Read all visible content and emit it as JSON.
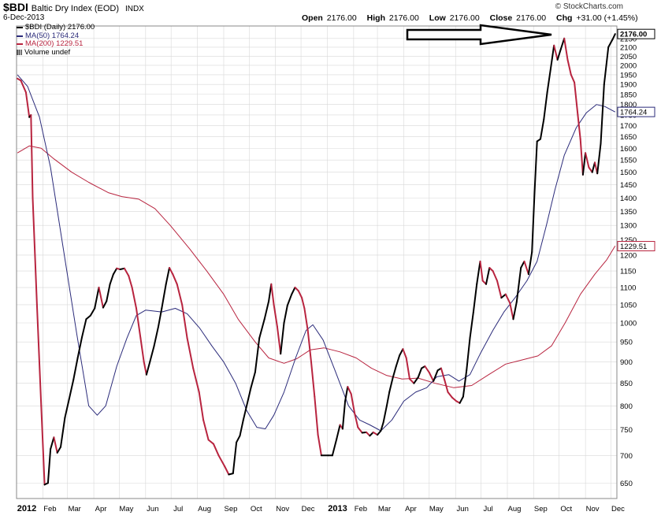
{
  "header": {
    "symbol": "$BDI",
    "name": "Baltic Dry Index (EOD)",
    "exchange": "INDX",
    "date": "6-Dec-2013",
    "brand": "© StockCharts.com",
    "open_label": "Open",
    "open": "2176.00",
    "high_label": "High",
    "high": "2176.00",
    "low_label": "Low",
    "low": "2176.00",
    "close_label": "Close",
    "close": "2176.00",
    "chg_label": "Chg",
    "chg": "+31.00 (+1.45%)"
  },
  "legend": [
    {
      "text": "$BDI (Daily) 2176.00",
      "color": "#000000"
    },
    {
      "text": "MA(50) 1764.24",
      "color": "#2b2b7a"
    },
    {
      "text": "MA(200) 1229.51",
      "color": "#b8243f"
    },
    {
      "text": "Volume undef",
      "color": "#555555"
    }
  ],
  "chart_data": {
    "type": "line",
    "y_scale": "log",
    "ylim": [
      630,
      2200
    ],
    "x_range": [
      "2012-01-01",
      "2013-12-08"
    ],
    "y_ticks": [
      650,
      700,
      750,
      800,
      850,
      900,
      950,
      1000,
      1050,
      1100,
      1150,
      1200,
      1250,
      1300,
      1350,
      1400,
      1450,
      1500,
      1550,
      1600,
      1650,
      1700,
      1750,
      1800,
      1850,
      1900,
      1950,
      2000,
      2050,
      2100,
      2150
    ],
    "x_ticks": [
      {
        "label": "2012",
        "date": "2012-01-01",
        "bold": true
      },
      {
        "label": "Feb",
        "date": "2012-02-01"
      },
      {
        "label": "Mar",
        "date": "2012-03-01"
      },
      {
        "label": "Apr",
        "date": "2012-04-01"
      },
      {
        "label": "May",
        "date": "2012-05-01"
      },
      {
        "label": "Jun",
        "date": "2012-06-01"
      },
      {
        "label": "Jul",
        "date": "2012-07-01"
      },
      {
        "label": "Aug",
        "date": "2012-08-01"
      },
      {
        "label": "Sep",
        "date": "2012-09-01"
      },
      {
        "label": "Oct",
        "date": "2012-10-01"
      },
      {
        "label": "Nov",
        "date": "2012-11-01"
      },
      {
        "label": "Dec",
        "date": "2012-12-01"
      },
      {
        "label": "2013",
        "date": "2013-01-01",
        "bold": true
      },
      {
        "label": "Feb",
        "date": "2013-02-01"
      },
      {
        "label": "Mar",
        "date": "2013-03-01"
      },
      {
        "label": "Apr",
        "date": "2013-04-01"
      },
      {
        "label": "May",
        "date": "2013-05-01"
      },
      {
        "label": "Jun",
        "date": "2013-06-01"
      },
      {
        "label": "Jul",
        "date": "2013-07-01"
      },
      {
        "label": "Aug",
        "date": "2013-08-01"
      },
      {
        "label": "Sep",
        "date": "2013-09-01"
      },
      {
        "label": "Oct",
        "date": "2013-10-01"
      },
      {
        "label": "Nov",
        "date": "2013-11-01"
      },
      {
        "label": "Dec",
        "date": "2013-12-01"
      }
    ],
    "grid": true,
    "legend_position": "top-left",
    "colors": {
      "up": "#000000",
      "down": "#b8243f",
      "ma50": "#2b2b7a",
      "ma200": "#b8243f",
      "grid": "#d8d8d8"
    },
    "price": {
      "name": "$BDI",
      "points": [
        [
          "2012-01-02",
          1930
        ],
        [
          "2012-01-06",
          1920
        ],
        [
          "2012-01-12",
          1860
        ],
        [
          "2012-01-16",
          1740
        ],
        [
          "2012-01-18",
          1750
        ],
        [
          "2012-01-20",
          1400
        ],
        [
          "2012-01-25",
          1050
        ],
        [
          "2012-01-30",
          800
        ],
        [
          "2012-02-03",
          647
        ],
        [
          "2012-02-07",
          650
        ],
        [
          "2012-02-10",
          712
        ],
        [
          "2012-02-14",
          735
        ],
        [
          "2012-02-18",
          705
        ],
        [
          "2012-02-22",
          716
        ],
        [
          "2012-02-27",
          775
        ],
        [
          "2012-03-03",
          815
        ],
        [
          "2012-03-08",
          858
        ],
        [
          "2012-03-13",
          910
        ],
        [
          "2012-03-18",
          962
        ],
        [
          "2012-03-23",
          1010
        ],
        [
          "2012-03-28",
          1020
        ],
        [
          "2012-04-02",
          1040
        ],
        [
          "2012-04-07",
          1100
        ],
        [
          "2012-04-12",
          1042
        ],
        [
          "2012-04-16",
          1060
        ],
        [
          "2012-04-20",
          1110
        ],
        [
          "2012-04-24",
          1140
        ],
        [
          "2012-04-28",
          1158
        ],
        [
          "2012-05-02",
          1155
        ],
        [
          "2012-05-07",
          1158
        ],
        [
          "2012-05-12",
          1135
        ],
        [
          "2012-05-16",
          1100
        ],
        [
          "2012-05-21",
          1040
        ],
        [
          "2012-05-26",
          960
        ],
        [
          "2012-05-30",
          900
        ],
        [
          "2012-06-02",
          870
        ],
        [
          "2012-06-06",
          900
        ],
        [
          "2012-06-11",
          940
        ],
        [
          "2012-06-16",
          990
        ],
        [
          "2012-06-20",
          1040
        ],
        [
          "2012-06-25",
          1110
        ],
        [
          "2012-06-29",
          1160
        ],
        [
          "2012-07-03",
          1140
        ],
        [
          "2012-07-08",
          1110
        ],
        [
          "2012-07-14",
          1050
        ],
        [
          "2012-07-20",
          960
        ],
        [
          "2012-07-27",
          885
        ],
        [
          "2012-08-03",
          830
        ],
        [
          "2012-08-08",
          770
        ],
        [
          "2012-08-14",
          730
        ],
        [
          "2012-08-20",
          722
        ],
        [
          "2012-08-26",
          700
        ],
        [
          "2012-09-02",
          680
        ],
        [
          "2012-09-07",
          665
        ],
        [
          "2012-09-12",
          667
        ],
        [
          "2012-09-16",
          725
        ],
        [
          "2012-09-20",
          738
        ],
        [
          "2012-09-24",
          770
        ],
        [
          "2012-09-28",
          800
        ],
        [
          "2012-10-03",
          840
        ],
        [
          "2012-10-08",
          876
        ],
        [
          "2012-10-13",
          960
        ],
        [
          "2012-10-19",
          1010
        ],
        [
          "2012-10-24",
          1060
        ],
        [
          "2012-10-27",
          1110
        ],
        [
          "2012-10-30",
          1050
        ],
        [
          "2012-11-03",
          990
        ],
        [
          "2012-11-07",
          920
        ],
        [
          "2012-11-11",
          1000
        ],
        [
          "2012-11-15",
          1048
        ],
        [
          "2012-11-20",
          1080
        ],
        [
          "2012-11-24",
          1100
        ],
        [
          "2012-11-28",
          1090
        ],
        [
          "2012-12-02",
          1070
        ],
        [
          "2012-12-05",
          1040
        ],
        [
          "2012-12-09",
          980
        ],
        [
          "2012-12-13",
          900
        ],
        [
          "2012-12-17",
          820
        ],
        [
          "2012-12-21",
          740
        ],
        [
          "2012-12-25",
          700
        ],
        [
          "2013-01-02",
          700
        ],
        [
          "2013-01-07",
          700
        ],
        [
          "2013-01-12",
          732
        ],
        [
          "2013-01-16",
          760
        ],
        [
          "2013-01-19",
          752
        ],
        [
          "2013-01-22",
          810
        ],
        [
          "2013-01-25",
          842
        ],
        [
          "2013-01-29",
          826
        ],
        [
          "2013-02-02",
          785
        ],
        [
          "2013-02-06",
          755
        ],
        [
          "2013-02-11",
          744
        ],
        [
          "2013-02-16",
          745
        ],
        [
          "2013-02-20",
          738
        ],
        [
          "2013-02-24",
          745
        ],
        [
          "2013-03-01",
          740
        ],
        [
          "2013-03-05",
          748
        ],
        [
          "2013-03-08",
          765
        ],
        [
          "2013-03-12",
          800
        ],
        [
          "2013-03-15",
          830
        ],
        [
          "2013-03-19",
          862
        ],
        [
          "2013-03-23",
          890
        ],
        [
          "2013-03-27",
          916
        ],
        [
          "2013-03-31",
          932
        ],
        [
          "2013-04-04",
          910
        ],
        [
          "2013-04-08",
          860
        ],
        [
          "2013-04-13",
          850
        ],
        [
          "2013-04-18",
          864
        ],
        [
          "2013-04-22",
          885
        ],
        [
          "2013-04-26",
          890
        ],
        [
          "2013-05-01",
          875
        ],
        [
          "2013-05-06",
          855
        ],
        [
          "2013-05-11",
          880
        ],
        [
          "2013-05-15",
          885
        ],
        [
          "2013-05-19",
          858
        ],
        [
          "2013-05-23",
          830
        ],
        [
          "2013-05-28",
          818
        ],
        [
          "2013-06-02",
          810
        ],
        [
          "2013-06-06",
          806
        ],
        [
          "2013-06-10",
          820
        ],
        [
          "2013-06-14",
          880
        ],
        [
          "2013-06-18",
          960
        ],
        [
          "2013-06-22",
          1030
        ],
        [
          "2013-06-26",
          1110
        ],
        [
          "2013-06-30",
          1180
        ],
        [
          "2013-07-03",
          1120
        ],
        [
          "2013-07-07",
          1110
        ],
        [
          "2013-07-11",
          1160
        ],
        [
          "2013-07-15",
          1150
        ],
        [
          "2013-07-20",
          1120
        ],
        [
          "2013-07-25",
          1070
        ],
        [
          "2013-07-30",
          1080
        ],
        [
          "2013-08-04",
          1055
        ],
        [
          "2013-08-08",
          1010
        ],
        [
          "2013-08-12",
          1058
        ],
        [
          "2013-08-17",
          1160
        ],
        [
          "2013-08-21",
          1180
        ],
        [
          "2013-08-26",
          1140
        ],
        [
          "2013-08-30",
          1210
        ],
        [
          "2013-09-02",
          1420
        ],
        [
          "2013-09-05",
          1630
        ],
        [
          "2013-09-09",
          1640
        ],
        [
          "2013-09-13",
          1730
        ],
        [
          "2013-09-17",
          1860
        ],
        [
          "2013-09-21",
          1980
        ],
        [
          "2013-09-25",
          2110
        ],
        [
          "2013-09-29",
          2030
        ],
        [
          "2013-10-03",
          2090
        ],
        [
          "2013-10-07",
          2150
        ],
        [
          "2013-10-11",
          2030
        ],
        [
          "2013-10-15",
          1950
        ],
        [
          "2013-10-19",
          1910
        ],
        [
          "2013-10-23",
          1750
        ],
        [
          "2013-10-26",
          1640
        ],
        [
          "2013-10-29",
          1490
        ],
        [
          "2013-11-01",
          1580
        ],
        [
          "2013-11-05",
          1520
        ],
        [
          "2013-11-09",
          1500
        ],
        [
          "2013-11-12",
          1540
        ],
        [
          "2013-11-15",
          1495
        ],
        [
          "2013-11-19",
          1620
        ],
        [
          "2013-11-23",
          1900
        ],
        [
          "2013-11-28",
          2100
        ],
        [
          "2013-12-03",
          2145
        ],
        [
          "2013-12-06",
          2176
        ]
      ]
    },
    "ma50": {
      "name": "MA(50)",
      "points": [
        [
          "2012-01-02",
          1950
        ],
        [
          "2012-01-14",
          1890
        ],
        [
          "2012-01-28",
          1740
        ],
        [
          "2012-02-10",
          1520
        ],
        [
          "2012-02-24",
          1240
        ],
        [
          "2012-03-12",
          970
        ],
        [
          "2012-03-26",
          800
        ],
        [
          "2012-04-05",
          780
        ],
        [
          "2012-04-15",
          800
        ],
        [
          "2012-04-28",
          890
        ],
        [
          "2012-05-10",
          960
        ],
        [
          "2012-05-21",
          1020
        ],
        [
          "2012-06-01",
          1035
        ],
        [
          "2012-06-20",
          1030
        ],
        [
          "2012-07-06",
          1040
        ],
        [
          "2012-07-20",
          1025
        ],
        [
          "2012-08-04",
          985
        ],
        [
          "2012-08-18",
          940
        ],
        [
          "2012-09-01",
          900
        ],
        [
          "2012-09-15",
          850
        ],
        [
          "2012-09-28",
          790
        ],
        [
          "2012-10-10",
          755
        ],
        [
          "2012-10-20",
          752
        ],
        [
          "2012-10-30",
          780
        ],
        [
          "2012-11-11",
          830
        ],
        [
          "2012-11-25",
          912
        ],
        [
          "2012-12-07",
          980
        ],
        [
          "2012-12-15",
          995
        ],
        [
          "2012-12-27",
          955
        ],
        [
          "2013-01-10",
          880
        ],
        [
          "2013-01-26",
          800
        ],
        [
          "2013-02-08",
          770
        ],
        [
          "2013-02-20",
          760
        ],
        [
          "2013-03-05",
          748
        ],
        [
          "2013-03-18",
          770
        ],
        [
          "2013-04-01",
          810
        ],
        [
          "2013-04-15",
          830
        ],
        [
          "2013-04-28",
          840
        ],
        [
          "2013-05-10",
          865
        ],
        [
          "2013-05-24",
          870
        ],
        [
          "2013-06-05",
          855
        ],
        [
          "2013-06-18",
          870
        ],
        [
          "2013-06-30",
          920
        ],
        [
          "2013-07-15",
          980
        ],
        [
          "2013-07-28",
          1030
        ],
        [
          "2013-08-10",
          1070
        ],
        [
          "2013-08-24",
          1120
        ],
        [
          "2013-09-05",
          1180
        ],
        [
          "2013-09-16",
          1300
        ],
        [
          "2013-09-26",
          1430
        ],
        [
          "2013-10-07",
          1570
        ],
        [
          "2013-10-21",
          1690
        ],
        [
          "2013-11-02",
          1760
        ],
        [
          "2013-11-14",
          1800
        ],
        [
          "2013-11-24",
          1790
        ],
        [
          "2013-12-06",
          1764
        ]
      ]
    },
    "ma200": {
      "name": "MA(200)",
      "points": [
        [
          "2012-01-02",
          1580
        ],
        [
          "2012-01-16",
          1610
        ],
        [
          "2012-01-30",
          1600
        ],
        [
          "2012-02-14",
          1555
        ],
        [
          "2012-03-06",
          1500
        ],
        [
          "2012-03-26",
          1460
        ],
        [
          "2012-04-18",
          1420
        ],
        [
          "2012-05-04",
          1405
        ],
        [
          "2012-05-24",
          1395
        ],
        [
          "2012-06-12",
          1360
        ],
        [
          "2012-06-30",
          1300
        ],
        [
          "2012-07-23",
          1220
        ],
        [
          "2012-08-12",
          1150
        ],
        [
          "2012-09-01",
          1080
        ],
        [
          "2012-09-18",
          1010
        ],
        [
          "2012-10-08",
          950
        ],
        [
          "2012-10-24",
          910
        ],
        [
          "2012-11-11",
          897
        ],
        [
          "2012-11-26",
          908
        ],
        [
          "2012-12-12",
          930
        ],
        [
          "2012-12-28",
          935
        ],
        [
          "2013-01-16",
          925
        ],
        [
          "2013-02-04",
          910
        ],
        [
          "2013-02-22",
          885
        ],
        [
          "2013-03-12",
          868
        ],
        [
          "2013-03-30",
          860
        ],
        [
          "2013-04-18",
          862
        ],
        [
          "2013-05-08",
          850
        ],
        [
          "2013-05-30",
          840
        ],
        [
          "2013-06-20",
          845
        ],
        [
          "2013-07-10",
          870
        ],
        [
          "2013-07-30",
          895
        ],
        [
          "2013-08-18",
          905
        ],
        [
          "2013-09-06",
          915
        ],
        [
          "2013-09-22",
          940
        ],
        [
          "2013-10-08",
          1000
        ],
        [
          "2013-10-26",
          1080
        ],
        [
          "2013-11-12",
          1140
        ],
        [
          "2013-11-26",
          1185
        ],
        [
          "2013-12-06",
          1230
        ]
      ]
    },
    "price_tags": [
      {
        "text": "2176.00",
        "value": 2176,
        "color": "#000000",
        "bold": true
      },
      {
        "text": "1764.24",
        "value": 1764.24,
        "color": "#2b2b7a",
        "bold": false
      },
      {
        "text": "1229.51",
        "value": 1229.51,
        "color": "#b8243f",
        "bold": false
      }
    ]
  }
}
